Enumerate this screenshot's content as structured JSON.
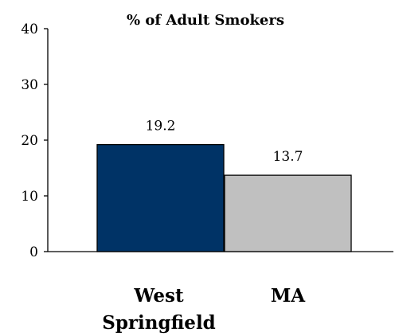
{
  "chart_data": {
    "type": "bar",
    "title": "% of Adult Smokers",
    "categories": [
      "West Springfield",
      "MA"
    ],
    "category_lines": [
      [
        "West",
        "Springfield"
      ],
      [
        "MA"
      ]
    ],
    "values": [
      19.2,
      13.7
    ],
    "data_labels": [
      "19.2",
      "13.7"
    ],
    "colors": [
      "#003366",
      "#c0c0c0"
    ],
    "ylim": [
      0,
      40
    ],
    "yticks": [
      0,
      10,
      20,
      30,
      40
    ],
    "xlabel": "",
    "ylabel": "",
    "grid": false
  }
}
